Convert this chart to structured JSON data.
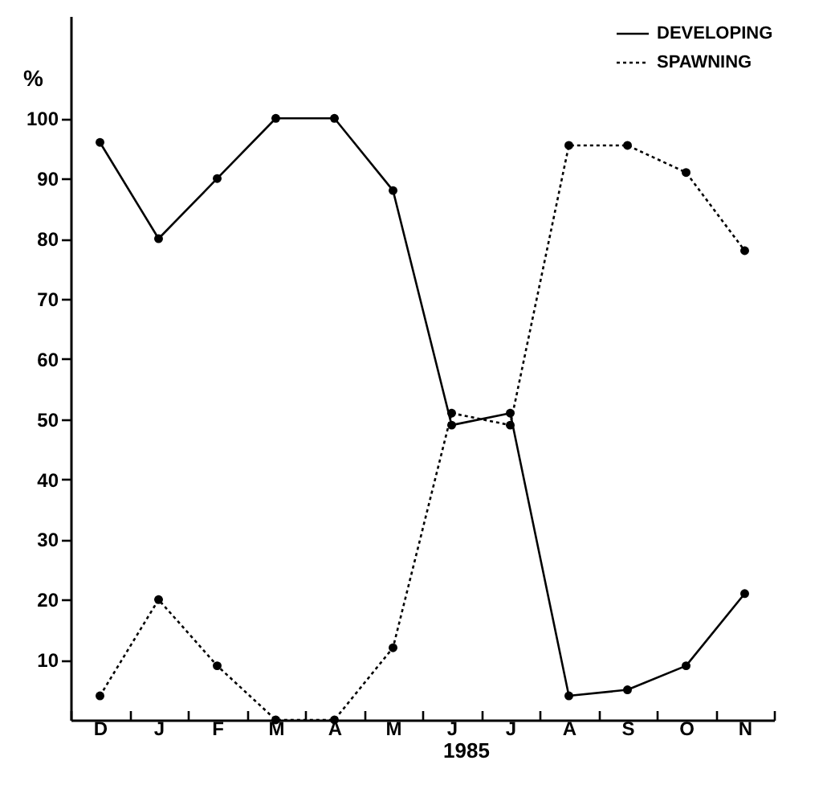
{
  "chart_data": {
    "type": "line",
    "xlabel": "1985",
    "ylabel": "%",
    "ylim": [
      0,
      117
    ],
    "categories": [
      "D",
      "J",
      "F",
      "M",
      "A",
      "M",
      "J",
      "J",
      "A",
      "S",
      "O",
      "N"
    ],
    "yticks": [
      10,
      20,
      30,
      40,
      50,
      60,
      70,
      80,
      90,
      100
    ],
    "grid": false,
    "legend": "top right",
    "marker": "circle",
    "series": [
      {
        "name": "DEVELOPING",
        "color": "#000000",
        "line_style": "solid",
        "values": [
          96,
          80,
          90,
          100,
          100,
          88,
          49,
          51,
          4,
          5,
          9,
          21
        ]
      },
      {
        "name": "SPAWNING",
        "color": "#000000",
        "line_style": "dotted",
        "values": [
          4,
          20,
          9,
          0,
          0,
          12,
          51,
          49,
          95.5,
          95.5,
          91,
          78
        ]
      }
    ]
  }
}
